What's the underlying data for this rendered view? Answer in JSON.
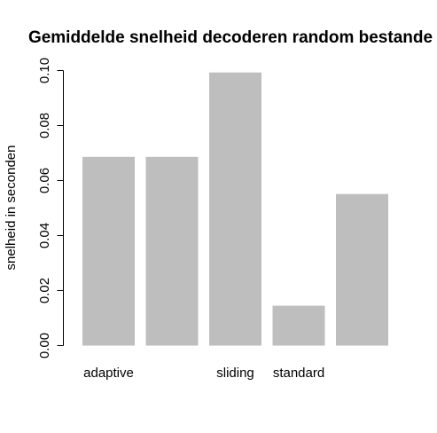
{
  "chart_data": {
    "type": "bar",
    "title": "Gemiddelde snelheid decoderen random bestande",
    "xlabel": "",
    "ylabel": "snelheid in seconden",
    "categories": [
      "adaptive",
      "",
      "sliding",
      "standard",
      ""
    ],
    "values": [
      0.0686,
      0.0686,
      0.0993,
      0.0145,
      0.0551
    ],
    "ylim": [
      0,
      0.1
    ],
    "yticks": [
      0.0,
      0.02,
      0.04,
      0.06,
      0.08,
      0.1
    ],
    "ytick_labels": [
      "0.00",
      "0.02",
      "0.04",
      "0.06",
      "0.08",
      "0.10"
    ],
    "bar_color": "#bebebe",
    "grid": false,
    "legend": "none"
  }
}
